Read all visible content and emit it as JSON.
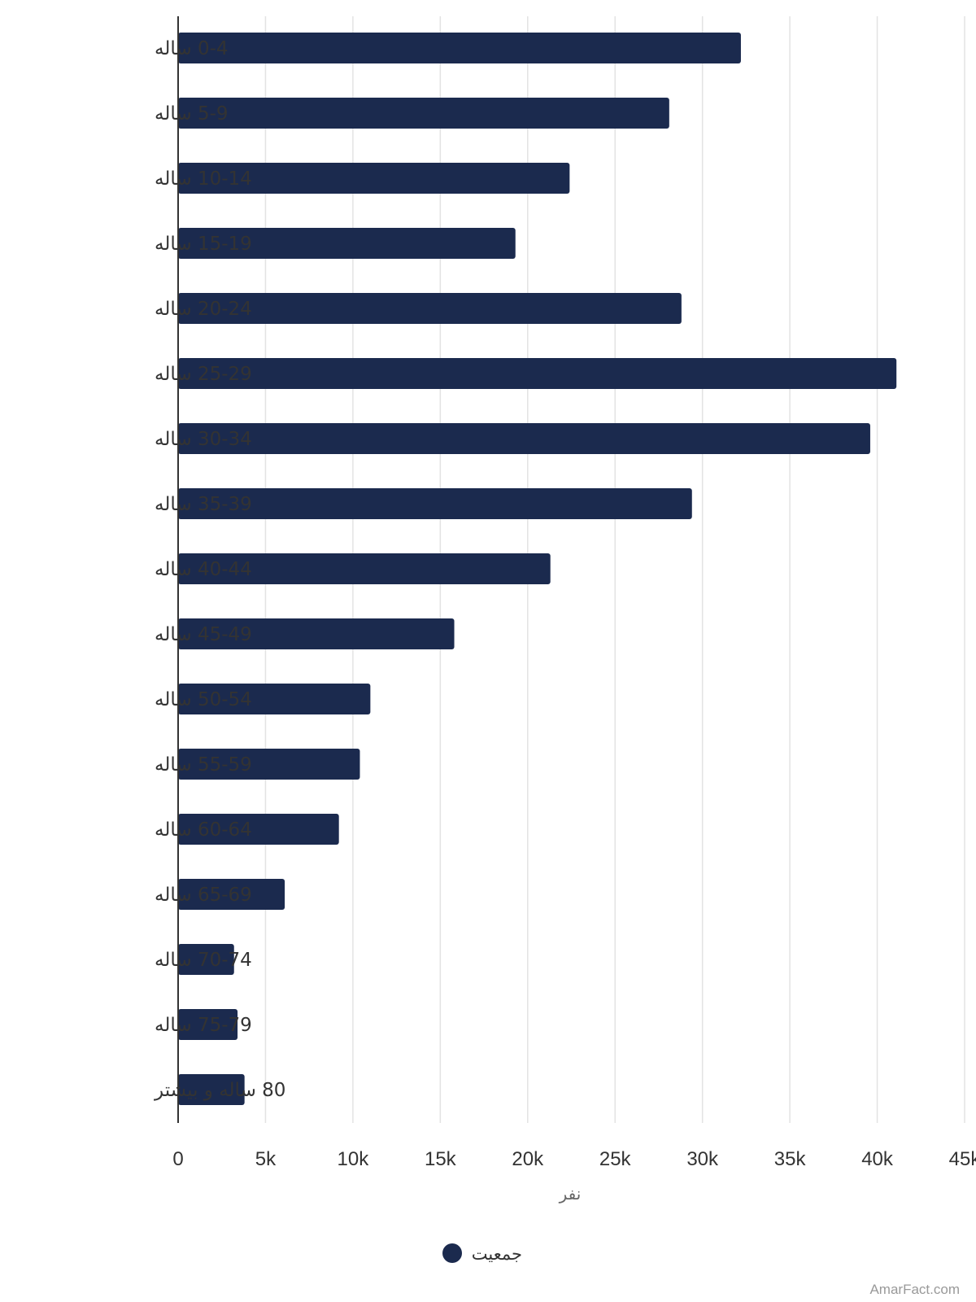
{
  "chart_data": {
    "type": "bar",
    "orientation": "horizontal",
    "categories": [
      "0-4 ساله",
      "5-9 ساله",
      "10-14 ساله",
      "15-19 ساله",
      "20-24 ساله",
      "25-29 ساله",
      "30-34 ساله",
      "35-39 ساله",
      "40-44 ساله",
      "45-49 ساله",
      "50-54 ساله",
      "55-59 ساله",
      "60-64 ساله",
      "65-69 ساله",
      "70-74 ساله",
      "75-79 ساله",
      "80 ساله و بیشتر"
    ],
    "series": [
      {
        "name": "جمعیت",
        "color": "#1b2a4e",
        "values": [
          32200,
          28100,
          22400,
          19300,
          28800,
          41100,
          39600,
          29400,
          21300,
          15800,
          11000,
          10400,
          9200,
          6100,
          3200,
          3400,
          3800
        ]
      }
    ],
    "xlabel": "نفر",
    "ylabel": "",
    "xlim": [
      0,
      45000
    ],
    "x_ticks": [
      {
        "value": 0,
        "label": "0"
      },
      {
        "value": 5000,
        "label": "5k"
      },
      {
        "value": 10000,
        "label": "10k"
      },
      {
        "value": 15000,
        "label": "15k"
      },
      {
        "value": 20000,
        "label": "20k"
      },
      {
        "value": 25000,
        "label": "25k"
      },
      {
        "value": 30000,
        "label": "30k"
      },
      {
        "value": 35000,
        "label": "35k"
      },
      {
        "value": 40000,
        "label": "40k"
      },
      {
        "value": 45000,
        "label": "45k"
      }
    ],
    "grid": "vertical",
    "legend": "bottom-center"
  },
  "credit": "AmarFact.com"
}
